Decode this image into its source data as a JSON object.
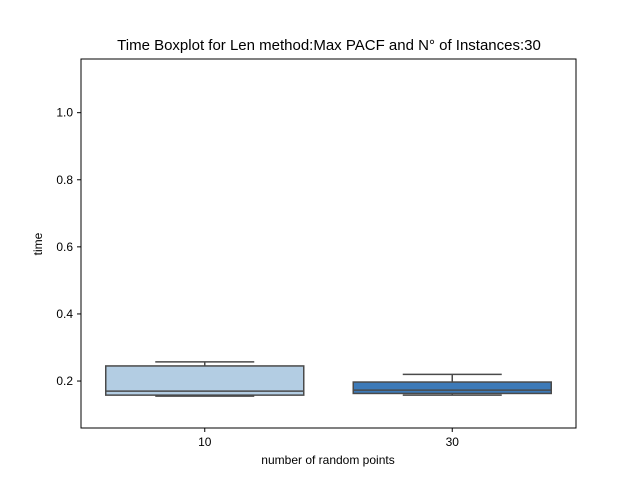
{
  "chart_data": {
    "type": "box",
    "title": "Time Boxplot for Len method:Max PACF and N° of Instances:30",
    "xlabel": "number of random points",
    "ylabel": "time",
    "ylim": [
      0.06,
      1.16
    ],
    "yticks": [
      0.2,
      0.4,
      0.6,
      0.8,
      1.0
    ],
    "ytick_labels": [
      "0.2",
      "0.4",
      "0.6",
      "0.8",
      "1.0"
    ],
    "categories": [
      "10",
      "30"
    ],
    "boxes": [
      {
        "category": "10",
        "whisker_low": 0.155,
        "q1": 0.158,
        "median": 0.17,
        "q3": 0.245,
        "whisker_high": 0.257,
        "color": "#b3cde3"
      },
      {
        "category": "30",
        "whisker_low": 0.158,
        "q1": 0.163,
        "median": 0.173,
        "q3": 0.197,
        "whisker_high": 0.22,
        "color": "#3d7ab8"
      }
    ],
    "grid": false
  }
}
